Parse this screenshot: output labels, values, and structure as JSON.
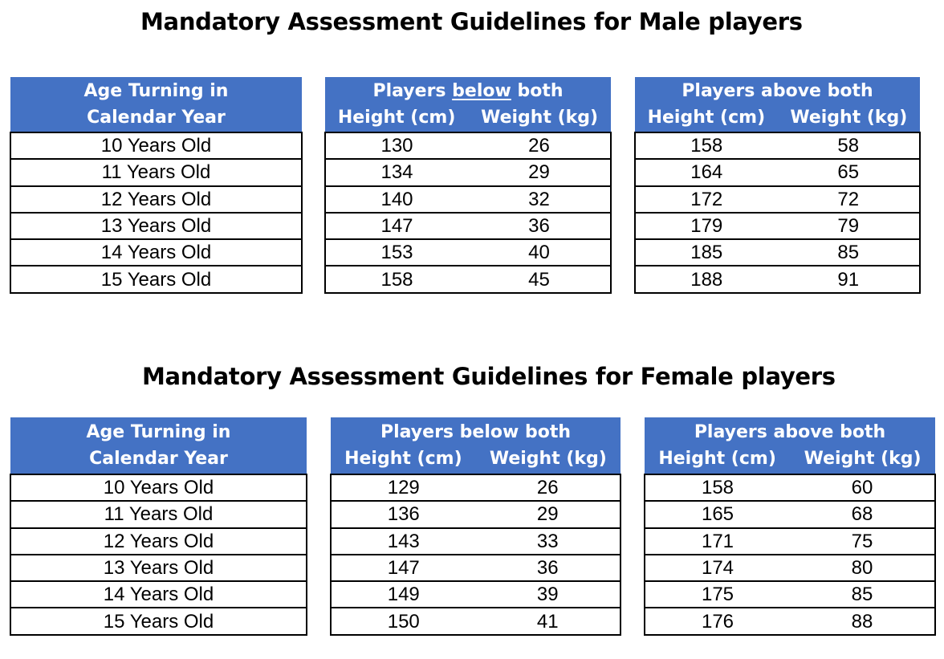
{
  "male": {
    "title": "Mandatory Assessment Guidelines for Male players",
    "age_header_line1": "Age Turning in",
    "age_header_line2": "Calendar Year",
    "below_header_pre": "Players ",
    "below_header_emph": "below",
    "below_header_post": " both",
    "above_header": "Players above both",
    "height_label": "Height (cm)",
    "weight_label": "Weight (kg)",
    "rows": [
      {
        "age": "10 Years Old",
        "below_h": "130",
        "below_w": "26",
        "above_h": "158",
        "above_w": "58"
      },
      {
        "age": "11 Years Old",
        "below_h": "134",
        "below_w": "29",
        "above_h": "164",
        "above_w": "65"
      },
      {
        "age": "12 Years Old",
        "below_h": "140",
        "below_w": "32",
        "above_h": "172",
        "above_w": "72"
      },
      {
        "age": "13 Years Old",
        "below_h": "147",
        "below_w": "36",
        "above_h": "179",
        "above_w": "79"
      },
      {
        "age": "14 Years Old",
        "below_h": "153",
        "below_w": "40",
        "above_h": "185",
        "above_w": "85"
      },
      {
        "age": "15 Years Old",
        "below_h": "158",
        "below_w": "45",
        "above_h": "188",
        "above_w": "91"
      }
    ]
  },
  "female": {
    "title": "Mandatory Assessment Guidelines for Female players",
    "age_header_line1": "Age Turning in",
    "age_header_line2": "Calendar Year",
    "below_header": "Players below both",
    "above_header": "Players above both",
    "height_label": "Height (cm)",
    "weight_label": "Weight (kg)",
    "rows": [
      {
        "age": "10 Years Old",
        "below_h": "129",
        "below_w": "26",
        "above_h": "158",
        "above_w": "60"
      },
      {
        "age": "11 Years Old",
        "below_h": "136",
        "below_w": "29",
        "above_h": "165",
        "above_w": "68"
      },
      {
        "age": "12 Years Old",
        "below_h": "143",
        "below_w": "33",
        "above_h": "171",
        "above_w": "75"
      },
      {
        "age": "13 Years Old",
        "below_h": "147",
        "below_w": "36",
        "above_h": "174",
        "above_w": "80"
      },
      {
        "age": "14 Years Old",
        "below_h": "149",
        "below_w": "39",
        "above_h": "175",
        "above_w": "85"
      },
      {
        "age": "15 Years Old",
        "below_h": "150",
        "below_w": "41",
        "above_h": "176",
        "above_w": "88"
      }
    ],
    "header_fill": "#4472c4"
  }
}
